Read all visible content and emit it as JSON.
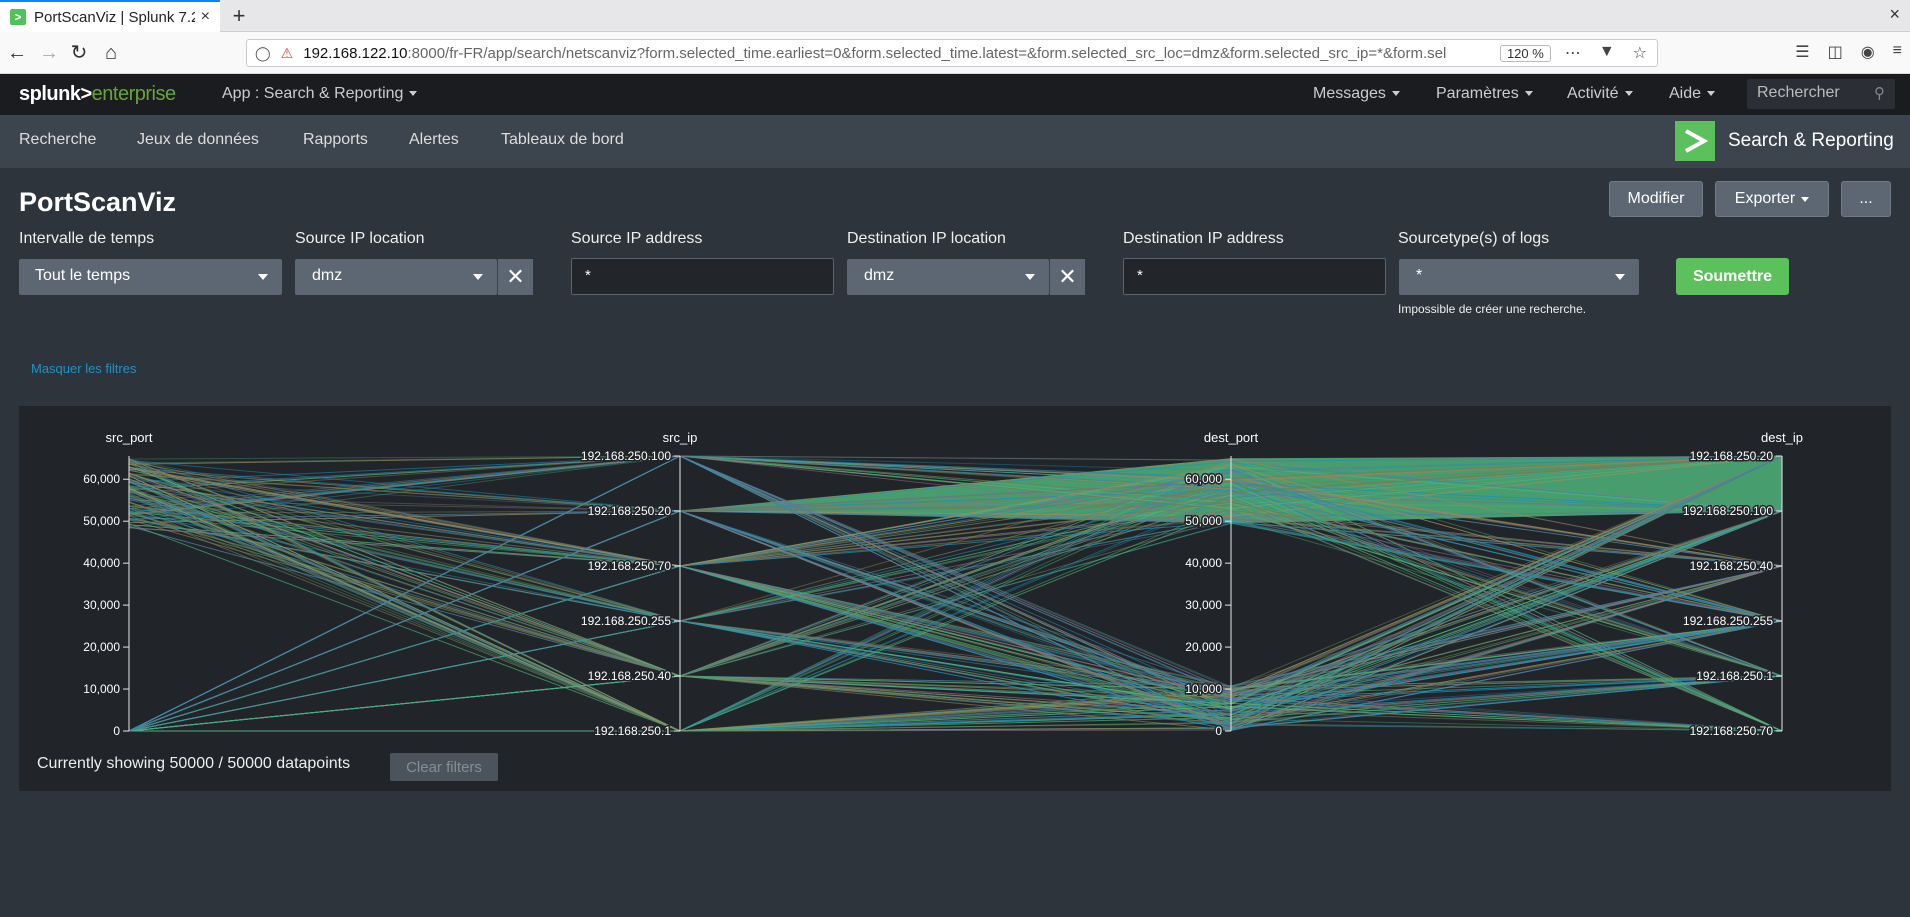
{
  "browser": {
    "tab_title": "PortScanViz | Splunk 7.2.",
    "tab_close": "×",
    "new_tab": "+",
    "window_close": "×",
    "url_host": "192.168.122.10",
    "url_rest": ":8000/fr-FR/app/search/netscanviz?form.selected_time.earliest=0&form.selected_time.latest=&form.selected_src_loc=dmz&form.selected_src_ip=*&form.sel",
    "zoom": "120 %"
  },
  "header": {
    "logo_a": "splunk>",
    "logo_b": "enterprise",
    "app_menu": "App : Search & Reporting",
    "menus": [
      "Messages",
      "Paramètres",
      "Activité",
      "Aide"
    ],
    "search_placeholder": "Rechercher"
  },
  "appbar": {
    "nav": [
      "Recherche",
      "Jeux de données",
      "Rapports",
      "Alertes",
      "Tableaux de bord"
    ],
    "app_name": "Search & Reporting"
  },
  "dashboard": {
    "title": "PortScanViz",
    "buttons": {
      "edit": "Modifier",
      "export": "Exporter",
      "more": "..."
    },
    "filters": {
      "time": {
        "label": "Intervalle de temps",
        "value": "Tout le temps"
      },
      "src_loc": {
        "label": "Source IP location",
        "value": "dmz"
      },
      "src_ip": {
        "label": "Source IP address",
        "value": "*"
      },
      "dest_loc": {
        "label": "Destination IP location",
        "value": "dmz"
      },
      "dest_ip": {
        "label": "Destination IP address",
        "value": "*"
      },
      "sourcetype": {
        "label": "Sourcetype(s) of logs",
        "value": "*",
        "help": "Impossible de créer une recherche."
      }
    },
    "submit": "Soumettre",
    "hide_filters": "Masquer les filtres",
    "showing": "Currently showing 50000 / 50000 datapoints",
    "clear_filters": "Clear filters"
  },
  "chart_data": {
    "type": "parallel-coordinates",
    "axes": [
      {
        "name": "src_port",
        "kind": "numeric",
        "ticks": [
          "0",
          "10,000",
          "20,000",
          "30,000",
          "40,000",
          "50,000",
          "60,000"
        ],
        "range": [
          0,
          65535
        ]
      },
      {
        "name": "src_ip",
        "kind": "category",
        "ticks": [
          "192.168.250.100",
          "192.168.250.20",
          "192.168.250.70",
          "192.168.250.255",
          "192.168.250.40",
          "192.168.250.1"
        ]
      },
      {
        "name": "dest_port",
        "kind": "numeric",
        "ticks": [
          "0",
          "10,000",
          "20,000",
          "30,000",
          "40,000",
          "50,000",
          "60,000"
        ],
        "range": [
          0,
          65535
        ]
      },
      {
        "name": "dest_ip",
        "kind": "category",
        "ticks": [
          "192.168.250.20",
          "192.168.250.100",
          "192.168.250.40",
          "192.168.250.255",
          "192.168.250.1",
          "192.168.250.70"
        ]
      }
    ],
    "colors": [
      "#4fb37a",
      "#1e8fb5",
      "#6e7f5a",
      "#8a6e8a",
      "#4a7fa0",
      "#9a8a5a"
    ]
  }
}
